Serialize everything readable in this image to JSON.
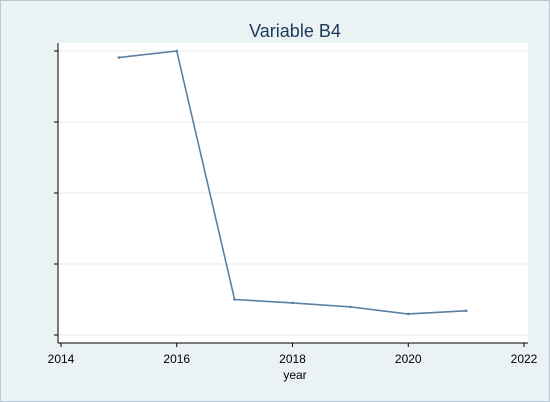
{
  "chart_data": {
    "type": "line",
    "title": "Variable B4",
    "xlabel": "year",
    "ylabel": "",
    "xlim": [
      2014,
      2022
    ],
    "ylim": [
      0,
      100
    ],
    "x_ticks": [
      2014,
      2016,
      2018,
      2020,
      2022
    ],
    "x_tick_labels": [
      "2014",
      "2016",
      "2018",
      "2020",
      "2022"
    ],
    "y_ticks": [
      0,
      25,
      50,
      75,
      100
    ],
    "y_tick_labels": [
      "",
      "",
      "",
      "",
      ""
    ],
    "grid": true,
    "series": [
      {
        "x": [
          2015,
          2016,
          2017,
          2018,
          2019,
          2020,
          2021
        ],
        "values": [
          97.7,
          100.0,
          12.5,
          11.3,
          9.9,
          7.4,
          8.5
        ]
      }
    ],
    "colors": {
      "background": "#eaf2f3",
      "plot_area": "#ffffff",
      "line": "#5a7fa0",
      "grid": "#e8eeee",
      "title": "#1e3a5a",
      "axis": "#000000"
    }
  }
}
